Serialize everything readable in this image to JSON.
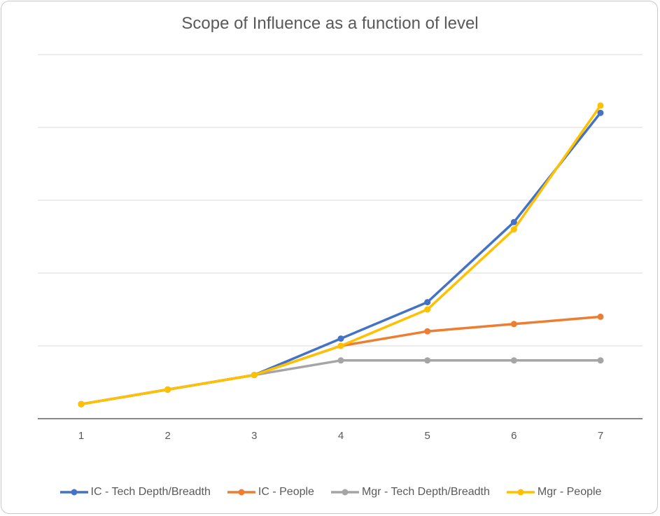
{
  "chart_data": {
    "type": "line",
    "title": "Scope of Influence as a function of level",
    "x": [
      "1",
      "2",
      "3",
      "4",
      "5",
      "6",
      "7"
    ],
    "ylim": [
      0,
      5
    ],
    "y_tick_labels_shown": false,
    "grid": true,
    "legend_position": "bottom",
    "series": [
      {
        "name": "IC - Tech Depth/Breadth",
        "color": "#4472C4",
        "values": [
          0.2,
          0.4,
          0.6,
          1.1,
          1.6,
          2.7,
          4.2
        ]
      },
      {
        "name": "IC - People",
        "color": "#ED7D31",
        "values": [
          0.2,
          0.4,
          0.6,
          1.0,
          1.2,
          1.3,
          1.4
        ]
      },
      {
        "name": "Mgr - Tech Depth/Breadth",
        "color": "#A5A5A5",
        "values": [
          0.2,
          0.4,
          0.6,
          0.8,
          0.8,
          0.8,
          0.8
        ]
      },
      {
        "name": "Mgr - People",
        "color": "#FFC000",
        "values": [
          0.2,
          0.4,
          0.6,
          1.0,
          1.5,
          2.6,
          4.3
        ]
      }
    ]
  }
}
